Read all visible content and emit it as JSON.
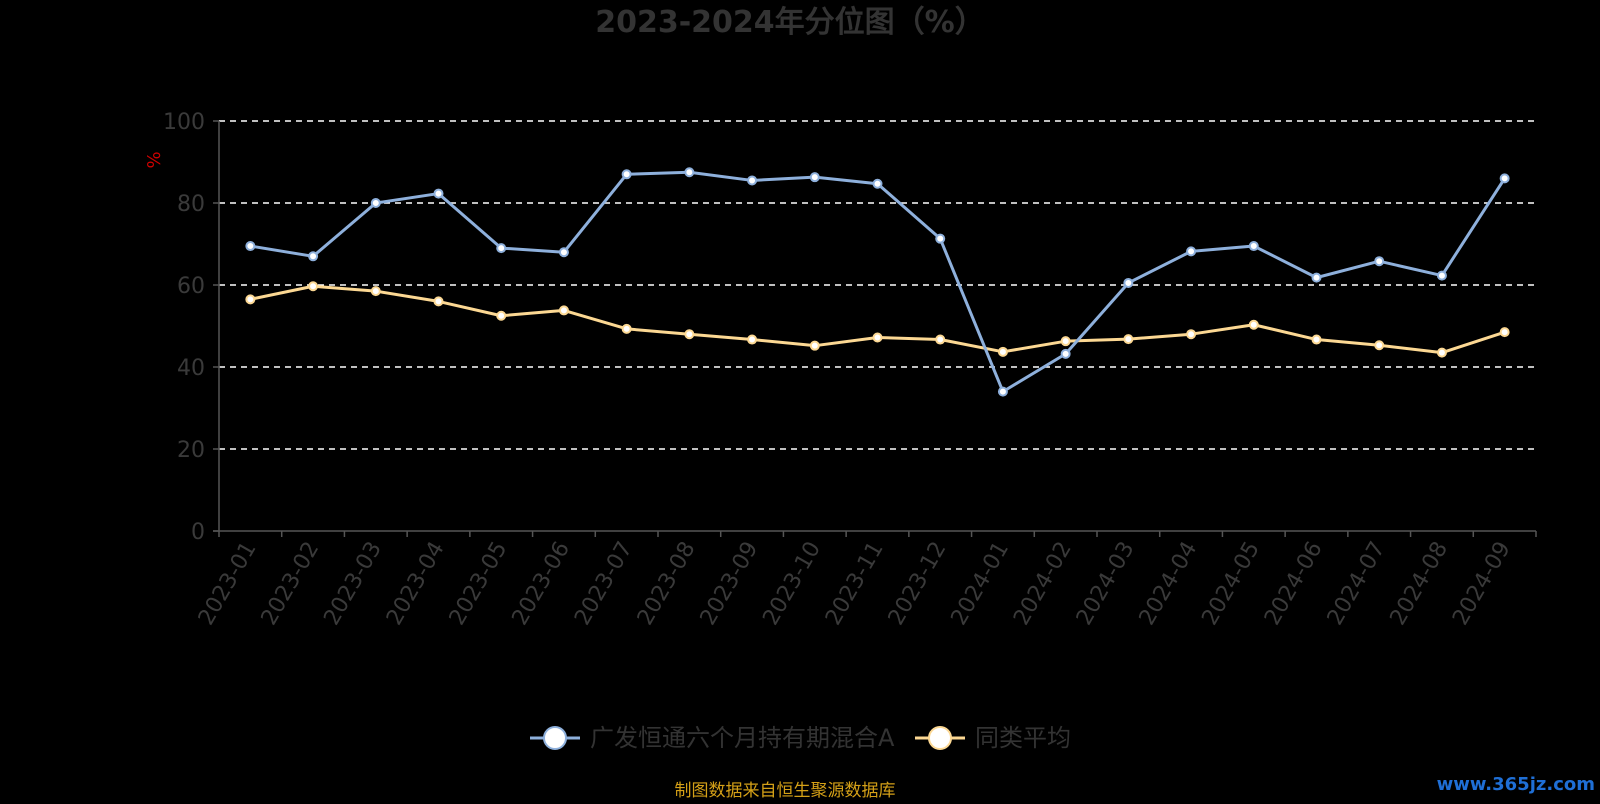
{
  "chart_data": {
    "type": "line",
    "title": "2023-2024年分位图（%）",
    "ylabel": "%",
    "xlabel": "",
    "ylim": [
      0,
      100
    ],
    "yticks": [
      0,
      20,
      40,
      60,
      80,
      100
    ],
    "grid": "horizontal dashed",
    "legend_position": "bottom",
    "categories": [
      "2023-01",
      "2023-02",
      "2023-03",
      "2023-04",
      "2023-05",
      "2023-06",
      "2023-07",
      "2023-08",
      "2023-09",
      "2023-10",
      "2023-11",
      "2023-12",
      "2024-01",
      "2024-02",
      "2024-03",
      "2024-04",
      "2024-05",
      "2024-06",
      "2024-07",
      "2024-08",
      "2024-09"
    ],
    "series": [
      {
        "name": "广发恒通六个月持有期混合A",
        "color": "#8eb0dc",
        "values": [
          69.5,
          67,
          80,
          82.3,
          69,
          68,
          87,
          87.5,
          85.5,
          86.3,
          84.7,
          71.3,
          34,
          43.2,
          60.5,
          68.2,
          69.5,
          61.8,
          65.8,
          62.3,
          86
        ]
      },
      {
        "name": "同类平均",
        "color": "#fcd893",
        "values": [
          56.5,
          59.7,
          58.5,
          56,
          52.5,
          53.8,
          49.3,
          48,
          46.7,
          45.2,
          47.2,
          46.7,
          43.7,
          46.3,
          46.8,
          48,
          50.3,
          46.7,
          45.3,
          43.5,
          48.5
        ]
      }
    ]
  },
  "source_text": "制图数据来自恒生聚源数据库",
  "watermark": "www.365jz.com"
}
